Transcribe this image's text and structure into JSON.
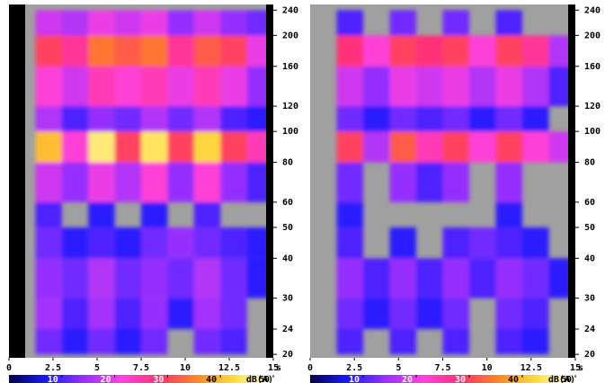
{
  "chart_data": [
    {
      "type": "heatmap",
      "xlabel": "s",
      "xlim": [
        0,
        15
      ],
      "xticks": [
        0,
        2.5,
        5,
        7.5,
        10,
        12.5,
        15
      ],
      "ylim": [
        19.5,
        250
      ],
      "yticks": [
        20,
        24,
        30,
        40,
        50,
        60,
        80,
        100,
        120,
        160,
        200,
        240
      ],
      "log_y": true,
      "x_bins": [
        0,
        1.5,
        3,
        4.5,
        6,
        7.5,
        9,
        10.5,
        12,
        13.5,
        15
      ],
      "y_bins": [
        20,
        24,
        30,
        40,
        50,
        60,
        80,
        100,
        120,
        160,
        200,
        240
      ],
      "values": [
        [
          null,
          12,
          8,
          12,
          8,
          12,
          null,
          12,
          10,
          null
        ],
        [
          null,
          15,
          10,
          15,
          10,
          14,
          8,
          15,
          12,
          null
        ],
        [
          null,
          14,
          12,
          16,
          12,
          14,
          12,
          16,
          12,
          8
        ],
        [
          null,
          12,
          8,
          10,
          8,
          12,
          14,
          12,
          10,
          8
        ],
        [
          null,
          10,
          null,
          8,
          null,
          8,
          null,
          10,
          null,
          null
        ],
        [
          null,
          18,
          14,
          20,
          16,
          22,
          14,
          22,
          14,
          10
        ],
        [
          null,
          40,
          22,
          45,
          30,
          44,
          30,
          42,
          30,
          24
        ],
        [
          null,
          16,
          10,
          14,
          12,
          16,
          12,
          16,
          10,
          8
        ],
        [
          null,
          22,
          18,
          24,
          22,
          24,
          20,
          24,
          20,
          14
        ],
        [
          null,
          30,
          26,
          34,
          32,
          34,
          26,
          32,
          30,
          20
        ],
        [
          null,
          18,
          16,
          20,
          18,
          20,
          14,
          18,
          14,
          12
        ]
      ],
      "background": "#a0a0a0",
      "colorbar": {
        "clim": [
          0,
          50
        ],
        "ticks": [
          10,
          20,
          30,
          40,
          50
        ],
        "label": "dB(A)",
        "colors": [
          "#000050",
          "#1a1aff",
          "#9a30ff",
          "#ff40e0",
          "#ff3070",
          "#ff8a20",
          "#ffe040",
          "#ffffff"
        ]
      }
    },
    {
      "type": "heatmap",
      "xlabel": "s",
      "xlim": [
        0,
        15
      ],
      "xticks": [
        0,
        2.5,
        5,
        7.5,
        10,
        12.5,
        15
      ],
      "ylim": [
        19.5,
        250
      ],
      "yticks": [
        20,
        24,
        30,
        40,
        50,
        60,
        80,
        100,
        120,
        160,
        200,
        240
      ],
      "log_y": true,
      "x_bins": [
        0,
        1.5,
        3,
        4.5,
        6,
        7.5,
        9,
        10.5,
        12,
        13.5,
        15
      ],
      "y_bins": [
        20,
        24,
        30,
        40,
        50,
        60,
        80,
        100,
        120,
        160,
        200,
        240
      ],
      "values": [
        [
          null,
          10,
          null,
          10,
          null,
          10,
          null,
          10,
          8,
          null
        ],
        [
          null,
          12,
          8,
          12,
          8,
          12,
          null,
          12,
          10,
          null
        ],
        [
          null,
          14,
          10,
          14,
          10,
          14,
          10,
          14,
          12,
          8
        ],
        [
          null,
          10,
          null,
          8,
          null,
          10,
          12,
          10,
          8,
          null
        ],
        [
          null,
          8,
          null,
          null,
          null,
          null,
          null,
          8,
          null,
          null
        ],
        [
          null,
          12,
          null,
          14,
          10,
          14,
          null,
          14,
          null,
          null
        ],
        [
          null,
          30,
          16,
          32,
          24,
          30,
          22,
          30,
          22,
          18
        ],
        [
          null,
          12,
          8,
          12,
          10,
          12,
          8,
          12,
          8,
          null
        ],
        [
          null,
          18,
          14,
          20,
          18,
          20,
          16,
          20,
          16,
          10
        ],
        [
          null,
          28,
          22,
          30,
          28,
          30,
          22,
          30,
          26,
          16
        ],
        [
          null,
          10,
          null,
          12,
          null,
          12,
          null,
          10,
          null,
          null
        ]
      ],
      "background": "#a0a0a0",
      "colorbar": {
        "clim": [
          0,
          50
        ],
        "ticks": [
          10,
          20,
          30,
          40,
          50
        ],
        "label": "dB(A)",
        "colors": [
          "#000050",
          "#1a1aff",
          "#9a30ff",
          "#ff40e0",
          "#ff3070",
          "#ff8a20",
          "#ffe040",
          "#ffffff"
        ]
      }
    }
  ]
}
